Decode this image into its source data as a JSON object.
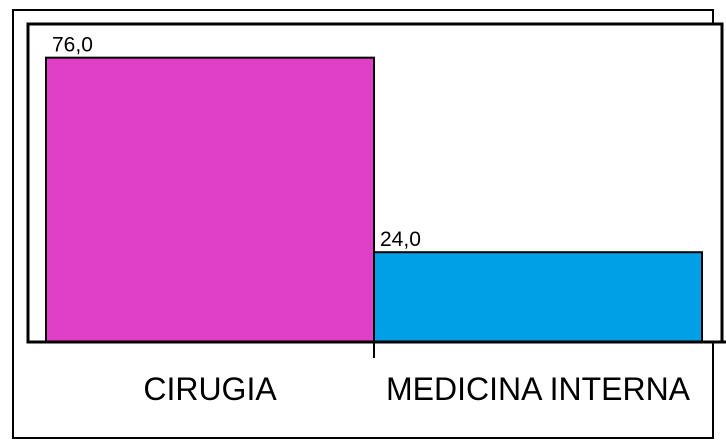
{
  "chart_data": {
    "type": "bar",
    "categories": [
      "CIRUGIA",
      "MEDICINA INTERNA"
    ],
    "values": [
      76,
      24
    ],
    "data_labels": [
      "76,0",
      "24,0"
    ],
    "colors": [
      "#e040c8",
      "#00a0e6"
    ],
    "title": "",
    "xlabel": "",
    "ylabel": "",
    "ylim": [
      0,
      85
    ],
    "grid": false,
    "legend": "none"
  }
}
